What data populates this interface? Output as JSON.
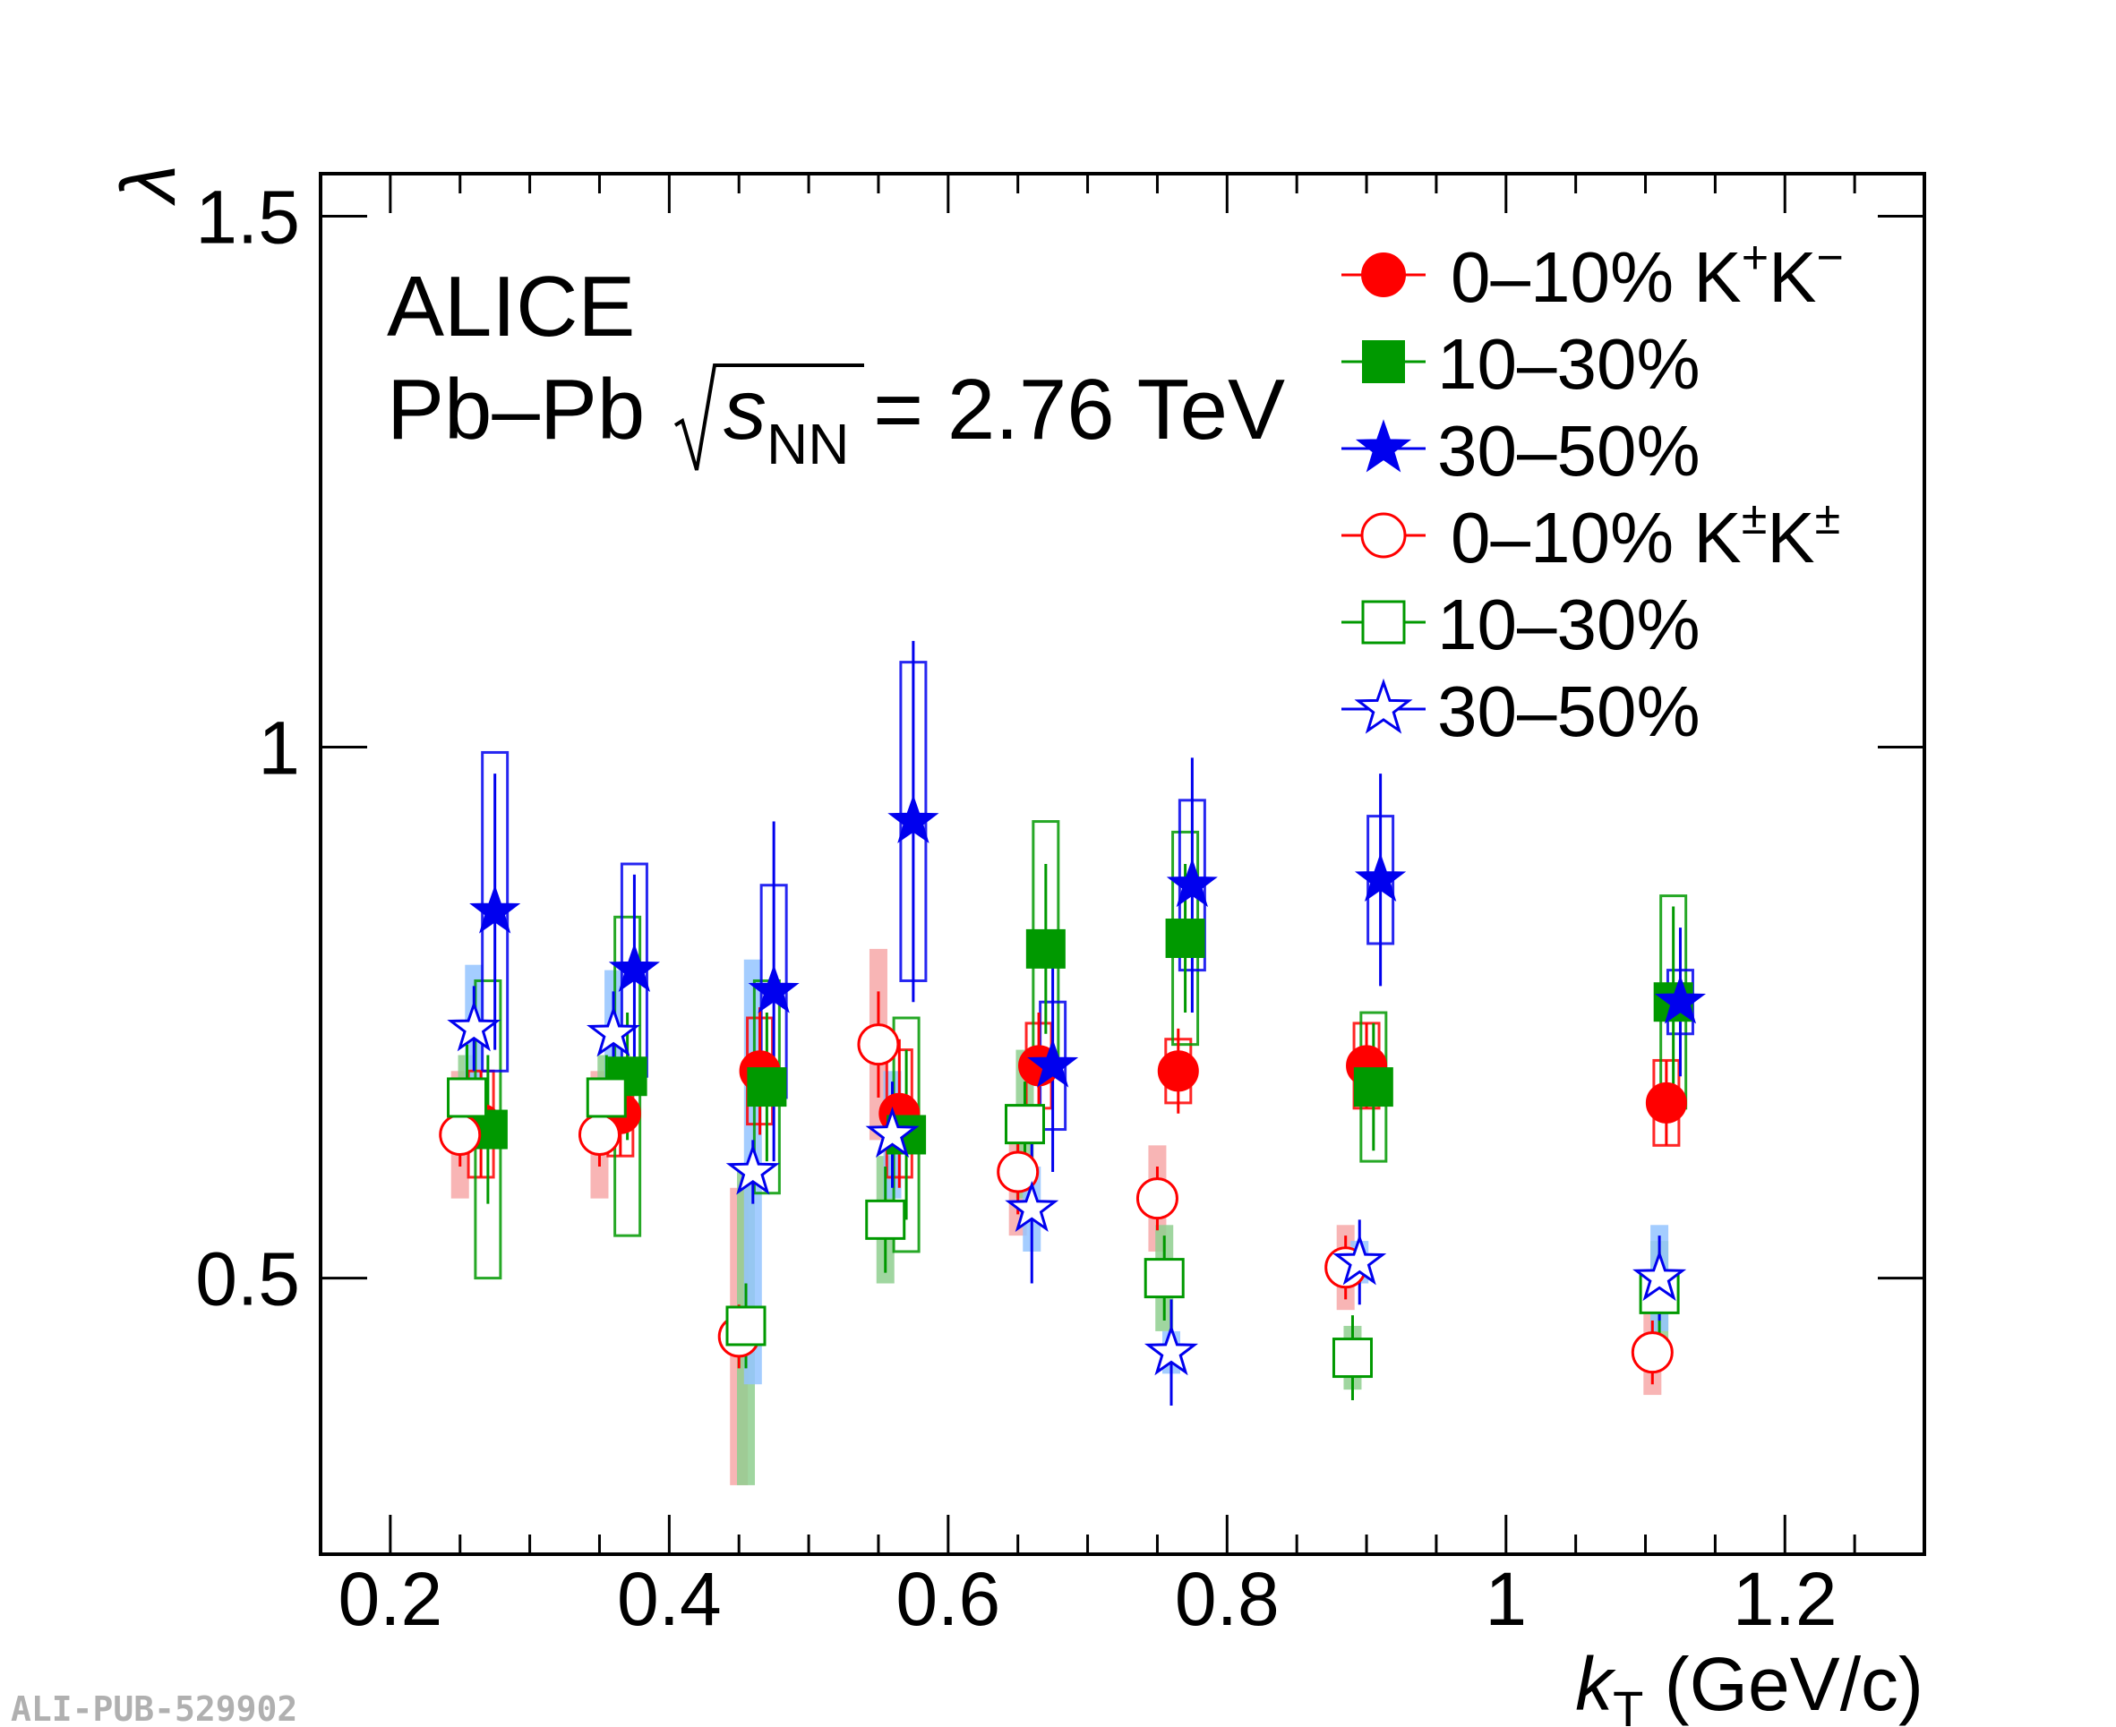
{
  "chart_data": {
    "type": "scatter",
    "xlabel": "k",
    "xlabel_sub": "T",
    "xlabel_unit": " (GeV/c)",
    "ylabel": "λ",
    "xlim": [
      0.15,
      1.3
    ],
    "ylim": [
      0.24,
      1.54
    ],
    "x_ticks": [
      0.2,
      0.4,
      0.6,
      0.8,
      1,
      1.2
    ],
    "x_tick_labels": [
      "0.2",
      "0.4",
      "0.6",
      "0.8",
      "1",
      "1.2"
    ],
    "y_ticks": [
      0.5,
      1,
      1.5
    ],
    "y_tick_labels": [
      "0.5",
      "1",
      "1.5"
    ],
    "annotation": {
      "line1": "ALICE",
      "line2_prefix": "Pb–Pb",
      "line2_s": "s",
      "line2_sub": "NN",
      "line2_suffix": " = 2.76 TeV"
    },
    "watermark": "ALI-PUB-529902",
    "series": [
      {
        "name": "0–10% K⁺K⁻",
        "legend_label": "0–10%",
        "legend_suffix": "K",
        "legend_sup1": "+",
        "legend_k2": "K",
        "legend_sup2": "−",
        "color": "#ff0000",
        "marker": "circle",
        "filled": true,
        "x": [
          0.265,
          0.365,
          0.465,
          0.565,
          0.665,
          0.765,
          0.9,
          1.115
        ],
        "y": [
          0.645,
          0.655,
          0.695,
          0.655,
          0.7,
          0.695,
          0.7,
          0.665
        ],
        "stat_err": [
          0.05,
          0.04,
          0.06,
          0.07,
          0.05,
          0.04,
          0.04,
          0.04
        ],
        "syst_err": [
          0.05,
          0.04,
          0.05,
          0.06,
          0.04,
          0.03,
          0.04,
          0.04
        ]
      },
      {
        "name": "10–30%",
        "legend_label": "10–30%",
        "color": "#009900",
        "marker": "square",
        "filled": true,
        "x": [
          0.27,
          0.37,
          0.47,
          0.57,
          0.67,
          0.77,
          0.905,
          1.12
        ],
        "y": [
          0.64,
          0.69,
          0.68,
          0.635,
          0.81,
          0.82,
          0.68,
          0.76
        ],
        "stat_err": [
          0.07,
          0.06,
          0.07,
          0.08,
          0.08,
          0.07,
          0.06,
          0.09
        ],
        "syst_err": [
          0.14,
          0.15,
          0.1,
          0.11,
          0.12,
          0.1,
          0.07,
          0.1
        ]
      },
      {
        "name": "30–50%",
        "legend_label": "30–50%",
        "color": "#0000ee",
        "marker": "star",
        "filled": true,
        "x": [
          0.275,
          0.375,
          0.475,
          0.575,
          0.675,
          0.775,
          0.91,
          1.125
        ],
        "y": [
          0.845,
          0.79,
          0.77,
          0.93,
          0.7,
          0.87,
          0.875,
          0.76
        ],
        "stat_err": [
          0.13,
          0.09,
          0.16,
          0.17,
          0.1,
          0.12,
          0.1,
          0.07
        ],
        "syst_err": [
          0.15,
          0.1,
          0.1,
          0.15,
          0.06,
          0.08,
          0.06,
          0.03
        ]
      },
      {
        "name": "0–10% K±K±",
        "legend_label": "0–10%",
        "legend_suffix": "K",
        "legend_sup1": "±",
        "legend_k2": "K",
        "legend_sup2": "±",
        "color": "#ff0000",
        "marker": "circle",
        "filled": false,
        "x": [
          0.25,
          0.35,
          0.45,
          0.55,
          0.65,
          0.75,
          0.885,
          1.105
        ],
        "y": [
          0.635,
          0.635,
          0.445,
          0.72,
          0.6,
          0.575,
          0.51,
          0.43
        ],
        "stat_err": [
          0.03,
          0.03,
          0.03,
          0.05,
          0.04,
          0.03,
          0.03,
          0.03
        ],
        "syst_err": [
          0.06,
          0.06,
          0.14,
          0.09,
          0.06,
          0.05,
          0.04,
          0.04
        ]
      },
      {
        "name": "10–30%",
        "legend_label": "10–30%",
        "color": "#009900",
        "marker": "square",
        "filled": false,
        "x": [
          0.255,
          0.355,
          0.455,
          0.555,
          0.655,
          0.755,
          0.89,
          1.11
        ],
        "y": [
          0.67,
          0.67,
          0.455,
          0.555,
          0.645,
          0.5,
          0.425,
          0.485
        ],
        "stat_err": [
          0.05,
          0.04,
          0.04,
          0.05,
          0.04,
          0.04,
          0.04,
          0.04
        ],
        "syst_err": [
          0.04,
          0.04,
          0.15,
          0.06,
          0.07,
          0.05,
          0.03,
          0.05
        ]
      },
      {
        "name": "30–50%",
        "legend_label": "30–50%",
        "color": "#0000ee",
        "marker": "star",
        "filled": false,
        "x": [
          0.26,
          0.36,
          0.46,
          0.56,
          0.66,
          0.76,
          0.895,
          1.11
        ],
        "y": [
          0.735,
          0.73,
          0.6,
          0.635,
          0.565,
          0.43,
          0.515,
          0.5
        ],
        "stat_err": [
          0.04,
          0.04,
          0.03,
          0.05,
          0.07,
          0.05,
          0.04,
          0.04
        ],
        "syst_err": [
          0.06,
          0.06,
          0.2,
          0.06,
          0.04,
          0.02,
          0.02,
          0.05
        ]
      }
    ]
  }
}
